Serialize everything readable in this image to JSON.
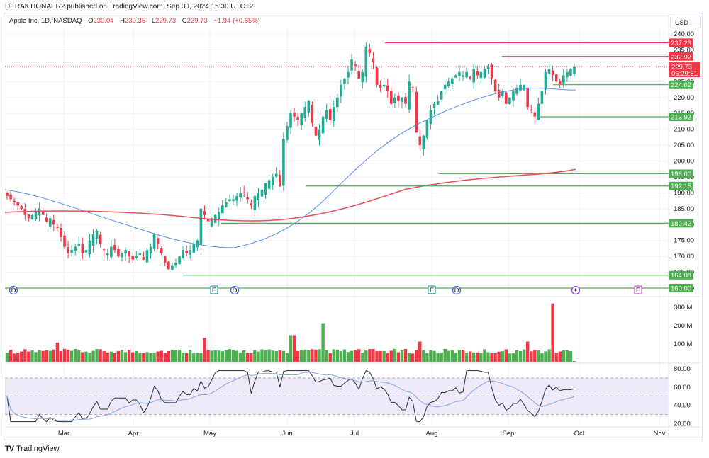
{
  "header": {
    "publisher_line": "DERAKTIONAER2 published on TradingView.com, Sep 30, 2024 15:30 UTC+2",
    "symbol": "Apple Inc, 1D, NASDAQ",
    "open_label": "O",
    "open": "230.04",
    "high_label": "H",
    "high": "230.35",
    "low_label": "L",
    "low": "229.73",
    "close_label": "C",
    "close": "229.73",
    "change": "+1.94 (+0.85%)"
  },
  "currency_button": "USD",
  "footer": {
    "brand": "TradingView",
    "logo_mark": "TV"
  },
  "colors": {
    "up": "#22ab94",
    "down": "#f23645",
    "vol_up": "#4caf50",
    "vol_down": "#f23645",
    "ma_fast": "#5b8def",
    "ma_slow": "#e84d5b",
    "support": "#4caf50",
    "resistance": "#f23645",
    "rsi_line": "#2a2e39",
    "rsi_ma": "#7fa6e8",
    "rsi_band": "#ede9f7"
  },
  "chart_data": {
    "type": "candlestick",
    "title": "Apple Inc, 1D, NASDAQ",
    "price_axis": {
      "ticks": [
        "240.00",
        "235.00",
        "230.00",
        "225.00",
        "220.00",
        "215.00",
        "210.00",
        "205.00",
        "200.00",
        "195.00",
        "190.00",
        "185.00",
        "180.00",
        "175.00",
        "170.00",
        "165.00",
        "160.00"
      ],
      "range": [
        160,
        240
      ],
      "current_price": "229.73",
      "countdown": "06:29:51"
    },
    "time_axis": {
      "labels": [
        "Mar",
        "Apr",
        "May",
        "Jun",
        "Jul",
        "Aug",
        "Sep",
        "Oct",
        "Nov"
      ]
    },
    "horizontal_levels": [
      {
        "price": "237.23",
        "type": "resistance"
      },
      {
        "price": "232.92",
        "type": "resistance"
      },
      {
        "price": "224.02",
        "type": "support"
      },
      {
        "price": "213.92",
        "type": "support"
      },
      {
        "price": "196.00",
        "type": "support"
      },
      {
        "price": "192.15",
        "type": "support"
      },
      {
        "price": "180.42",
        "type": "support"
      },
      {
        "price": "164.08",
        "type": "support"
      },
      {
        "price": "160.00",
        "type": "support"
      }
    ],
    "moving_averages": [
      {
        "name": "MA fast (approx 50)",
        "color": "#5b8def"
      },
      {
        "name": "MA slow (approx 200)",
        "color": "#e84d5b"
      }
    ],
    "events": [
      {
        "label": "D",
        "type": "dividend",
        "date": "Feb"
      },
      {
        "label": "E",
        "type": "earnings",
        "date": "May"
      },
      {
        "label": "D",
        "type": "dividend",
        "date": "May"
      },
      {
        "label": "E",
        "type": "earnings",
        "date": "Aug"
      },
      {
        "label": "D",
        "type": "dividend",
        "date": "Aug"
      },
      {
        "label": "✦",
        "type": "event",
        "date": "Sep"
      },
      {
        "label": "E",
        "type": "earnings-upcoming",
        "date": "Oct"
      }
    ],
    "closes_approx": [
      189,
      188,
      187,
      186,
      185,
      183,
      182,
      183,
      184,
      185,
      183,
      181,
      182,
      180,
      179,
      176,
      173,
      171,
      172,
      173,
      174,
      171,
      172,
      175,
      177,
      178,
      174,
      172,
      171,
      173,
      172,
      170,
      171,
      172,
      170,
      169,
      170,
      171,
      169,
      172,
      173,
      177,
      174,
      171,
      168,
      166,
      167,
      168,
      170,
      172,
      171,
      172,
      174,
      175,
      185,
      183,
      181,
      182,
      183,
      184,
      186,
      187,
      188,
      188,
      189,
      190,
      190,
      188,
      186,
      189,
      190,
      191,
      193,
      194,
      195,
      196,
      192,
      207,
      211,
      215,
      214,
      213,
      215,
      217,
      219,
      212,
      208,
      210,
      214,
      216,
      213,
      217,
      220,
      224,
      226,
      228,
      232,
      230,
      226,
      228,
      236,
      234,
      231,
      224,
      223,
      224,
      222,
      218,
      220,
      219,
      220,
      218,
      225,
      223,
      209,
      205,
      208,
      213,
      216,
      218,
      219,
      222,
      224,
      225,
      226,
      227,
      228,
      227,
      228,
      226,
      229,
      227,
      228,
      229,
      230,
      226,
      222,
      220,
      222,
      218,
      220,
      222,
      223,
      224,
      224,
      217,
      216,
      214,
      218,
      222,
      228,
      229,
      227,
      225,
      224,
      227,
      228,
      229,
      229.73
    ],
    "volume": {
      "ticks": [
        "300 M",
        "200 M",
        "100 M"
      ],
      "max_spike_m": 318
    },
    "rsi": {
      "ticks": [
        "80.00",
        "60.00",
        "40.00",
        "20.00"
      ],
      "bands": [
        70,
        30
      ],
      "last": 61
    }
  }
}
